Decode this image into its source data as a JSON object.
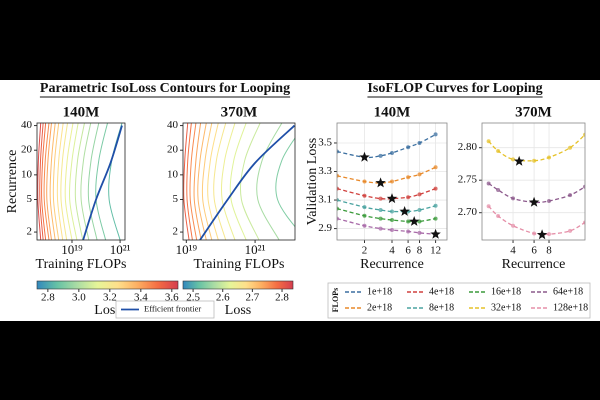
{
  "titles": [
    "Parametric IsoLoss Contours for Looping",
    "IsoFLOP Curves for Looping"
  ],
  "colormap": [
    "#3288bd",
    "#66c2a5",
    "#abdda4",
    "#e6f598",
    "#fee08b",
    "#fdae61",
    "#f46d43",
    "#d53e4f"
  ],
  "legend": {
    "title": "FLOPs",
    "items": [
      {
        "name": "1e+18",
        "color": "#3b6fa0"
      },
      {
        "name": "2e+18",
        "color": "#e8892a"
      },
      {
        "name": "4e+18",
        "color": "#d0413e"
      },
      {
        "name": "8e+18",
        "color": "#4aa3a0"
      },
      {
        "name": "16e+18",
        "color": "#3a9a3a"
      },
      {
        "name": "32e+18",
        "color": "#e6c229"
      },
      {
        "name": "64e+18",
        "color": "#8c5a8c"
      },
      {
        "name": "128e+18",
        "color": "#e58fa8"
      }
    ]
  },
  "chart_data": [
    {
      "type": "contour",
      "title": "140M",
      "xlabel": "Training FLOPs",
      "ylabel": "Recurrence",
      "log_x": true,
      "log_y": true,
      "xlim": [
        3.5e+17,
        1.6e+21
      ],
      "ylim": [
        1.6,
        43
      ],
      "xticks": [
        {
          "value": 1e+19,
          "label": "10¹⁹"
        },
        {
          "value": 1e+21,
          "label": "10²¹"
        }
      ],
      "yticks": [
        2,
        5,
        10,
        20,
        40
      ],
      "contour_y": [
        1.6,
        5,
        15,
        43
      ],
      "contours": [
        {
          "level": 3.6,
          "x": [
            5e+17,
            3.8e+17,
            4e+17,
            5e+17
          ]
        },
        {
          "level": 3.55,
          "x": [
            6.3e+17,
            4.6e+17,
            4.9e+17,
            6.3e+17
          ]
        },
        {
          "level": 3.5,
          "x": [
            8e+17,
            5.5e+17,
            6e+17,
            8e+17
          ]
        },
        {
          "level": 3.45,
          "x": [
            1.1e+18,
            7e+17,
            7.7e+17,
            1.1e+18
          ]
        },
        {
          "level": 3.4,
          "x": [
            1.4e+18,
            9e+17,
            1e+18,
            1.4e+18
          ]
        },
        {
          "level": 3.35,
          "x": [
            2e+18,
            1.25e+18,
            1.4e+18,
            2e+18
          ]
        },
        {
          "level": 3.3,
          "x": [
            2.8e+18,
            1.7e+18,
            1.9e+18,
            2.8e+18
          ]
        },
        {
          "level": 3.25,
          "x": [
            4.1e+18,
            2.5e+18,
            2.8e+18,
            4.3e+18
          ]
        },
        {
          "level": 3.2,
          "x": [
            6e+18,
            3.5e+18,
            4e+18,
            6.5e+18
          ]
        },
        {
          "level": 3.15,
          "x": [
            1e+19,
            5.3e+18,
            6.3e+18,
            1.1e+19
          ]
        },
        {
          "level": 3.1,
          "x": [
            1.6e+19,
            8e+18,
            1e+19,
            1.8e+19
          ]
        },
        {
          "level": 3.05,
          "x": [
            2.8e+19,
            1.4e+19,
            1.7e+19,
            3.3e+19
          ]
        },
        {
          "level": 3.0,
          "x": [
            5e+19,
            2.4e+19,
            3e+19,
            6e+19
          ]
        },
        {
          "level": 2.95,
          "x": [
            1.1e+20,
            4.9e+19,
            6.2e+19,
            1.3e+20
          ]
        },
        {
          "level": 2.9,
          "x": [
            2.5e+20,
            1e+20,
            1.3e+20,
            3e+20
          ]
        },
        {
          "level": 2.85,
          "x": [
            1e+21,
            3.5e+20,
            4.5e+20,
            1.2e+21
          ]
        }
      ],
      "frontier": {
        "name": "Efficient frontier",
        "color": "#1f4fa8",
        "x": [
          2.9e+19,
          1e+20,
          4e+20,
          1.2e+21
        ],
        "values": [
          1.6,
          5,
          14,
          40
        ]
      },
      "colorbar": {
        "label": "Loss",
        "lim": [
          2.73,
          3.64
        ],
        "ticks": [
          2.8,
          {
            "value": 3,
            "label": "3.0"
          },
          3.2,
          3.4,
          3.6
        ]
      }
    },
    {
      "type": "contour",
      "title": "370M",
      "xlabel": "Training FLOPs",
      "log_x": true,
      "log_y": true,
      "xlim": [
        8e+18,
        1.45e+22
      ],
      "ylim": [
        1.6,
        43
      ],
      "xticks": [
        {
          "value": 1e+19,
          "label": "10¹⁹"
        },
        {
          "value": 1e+21,
          "label": "10²¹"
        }
      ],
      "yticks": [
        2,
        5,
        10,
        20,
        40
      ],
      "contour_y": [
        1.6,
        5,
        15,
        43
      ],
      "contours": [
        {
          "level": 2.8,
          "x": [
            1.2e+19,
            8.5e+18,
            9e+18,
            1.1e+19
          ]
        },
        {
          "level": 2.78,
          "x": [
            1.5e+19,
            1.05e+19,
            1.1e+19,
            1.4e+19
          ]
        },
        {
          "level": 2.76,
          "x": [
            2e+19,
            1.3e+19,
            1.4e+19,
            1.9e+19
          ]
        },
        {
          "level": 2.74,
          "x": [
            2.7e+19,
            1.7e+19,
            1.9e+19,
            2.6e+19
          ]
        },
        {
          "level": 2.72,
          "x": [
            3.8e+19,
            2.2e+19,
            2.5e+19,
            3.8e+19
          ]
        },
        {
          "level": 2.7,
          "x": [
            5.5e+19,
            3e+19,
            3.5e+19,
            5.5e+19
          ]
        },
        {
          "level": 2.68,
          "x": [
            8.5e+19,
            4.3e+19,
            5e+19,
            8.5e+19
          ]
        },
        {
          "level": 2.66,
          "x": [
            1.4e+20,
            6.5e+19,
            7.5e+19,
            1.4e+20
          ]
        },
        {
          "level": 2.64,
          "x": [
            2.6e+20,
            1.1e+20,
            1.3e+20,
            2.6e+20
          ]
        },
        {
          "level": 2.62,
          "x": [
            5.5e+20,
            2e+20,
            2.4e+20,
            5.5e+20
          ]
        },
        {
          "level": 2.6,
          "x": [
            1.3e+21,
            4e+20,
            5e+20,
            1.4e+21
          ]
        },
        {
          "level": 2.57,
          "x": [
            5e+21,
            1.2e+21,
            1.6e+21,
            6e+21
          ]
        },
        {
          "level": 2.54,
          "x": [
            3e+22,
            4.5e+21,
            6e+21,
            3e+22
          ]
        }
      ],
      "frontier": {
        "color": "#1f4fa8",
        "x": [
          2.5e+19,
          1.6e+20,
          1e+21,
          1.4e+22
        ],
        "values": [
          1.6,
          5,
          14,
          40
        ]
      },
      "colorbar": {
        "label": "Loss",
        "lim": [
          2.466,
          2.837
        ],
        "ticks": [
          2.5,
          2.6,
          2.7,
          2.8
        ]
      }
    },
    {
      "type": "line",
      "title": "140M",
      "xlabel": "Recurrence",
      "ylabel": "Validation Loss",
      "log_x": true,
      "grid": true,
      "xlim": [
        1,
        16
      ],
      "ylim": [
        2.82,
        3.64
      ],
      "xticks": [
        2,
        4,
        6,
        8,
        12
      ],
      "yticks": [
        2.9,
        3.1,
        3.3,
        3.5
      ],
      "x": [
        1,
        2,
        3,
        4,
        6,
        8,
        12
      ],
      "series": [
        {
          "name": "1e+18",
          "color": "#3b6fa0",
          "values": [
            3.44,
            3.4,
            3.41,
            3.43,
            3.47,
            3.5,
            3.56
          ]
        },
        {
          "name": "2e+18",
          "color": "#e8892a",
          "values": [
            3.27,
            3.23,
            3.22,
            3.23,
            3.26,
            3.28,
            3.33
          ]
        },
        {
          "name": "4e+18",
          "color": "#d0413e",
          "values": [
            3.18,
            3.13,
            3.11,
            3.11,
            3.12,
            3.14,
            3.18
          ]
        },
        {
          "name": "8e+18",
          "color": "#4aa3a0",
          "values": [
            3.1,
            3.05,
            3.03,
            3.02,
            3.02,
            3.03,
            3.06
          ]
        },
        {
          "name": "16e+18",
          "color": "#3a9a3a",
          "values": [
            3.04,
            2.99,
            2.97,
            2.96,
            2.95,
            2.95,
            2.97
          ]
        },
        {
          "name": "32e+18",
          "color": "#a86aa8",
          "values": [
            2.97,
            2.92,
            2.9,
            2.89,
            2.88,
            2.87,
            2.86
          ]
        }
      ],
      "optima": {
        "x": [
          2,
          3,
          4,
          5.5,
          7,
          12
        ],
        "values": [
          3.4,
          3.22,
          3.11,
          3.02,
          2.95,
          2.86
        ]
      }
    },
    {
      "type": "line",
      "title": "370M",
      "xlabel": "Recurrence",
      "log_x": true,
      "grid": true,
      "xlim": [
        2.2,
        16
      ],
      "ylim": [
        2.658,
        2.838
      ],
      "xticks": [
        4,
        6,
        8
      ],
      "yticks": [
        {
          "value": 2.7,
          "label": "2.70"
        },
        2.75,
        {
          "value": 2.8,
          "label": "2.80"
        }
      ],
      "x": [
        2.5,
        3,
        4,
        6,
        8,
        12,
        16
      ],
      "series": [
        {
          "name": "32e+18",
          "color": "#e6c229",
          "values": [
            2.81,
            2.795,
            2.782,
            2.78,
            2.785,
            2.8,
            2.82
          ]
        },
        {
          "name": "64e+18",
          "color": "#8c5a8c",
          "values": [
            2.745,
            2.735,
            2.722,
            2.716,
            2.718,
            2.727,
            2.74
          ]
        },
        {
          "name": "128e+18",
          "color": "#e58fa8",
          "values": [
            2.71,
            2.695,
            2.68,
            2.668,
            2.667,
            2.672,
            2.685
          ]
        }
      ],
      "optima": {
        "x": [
          4.5,
          6,
          7
        ],
        "values": [
          2.779,
          2.716,
          2.666
        ]
      }
    }
  ]
}
